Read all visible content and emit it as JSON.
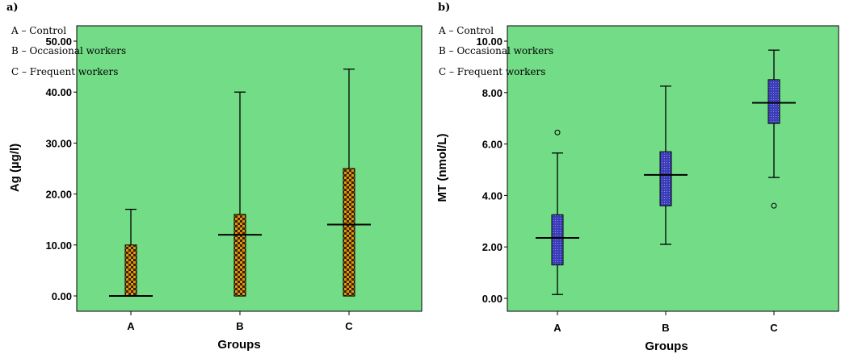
{
  "colors": {
    "plot_background": "#72dc86",
    "box_a_fill": "#e0920e",
    "box_a_pattern": "#3a2500",
    "box_b_fill": "#3b3cb8",
    "box_b_pattern": "#8c8cf0",
    "line": "#000000"
  },
  "chart_data": [
    {
      "type": "box",
      "panel_label": "a)",
      "xlabel": "Groups",
      "ylabel": "Ag (µg/l)",
      "categories": [
        "A",
        "B",
        "C"
      ],
      "ylim": [
        0,
        50
      ],
      "yticks": [
        0,
        10,
        20,
        30,
        40,
        50
      ],
      "ytick_labels": [
        "0.00",
        "10.00",
        "20.00",
        "30.00",
        "40.00",
        "50.00"
      ],
      "legend": [
        "A – Control",
        "B – Occasional workers",
        "C – Frequent workers"
      ],
      "legend_position": "top-left",
      "grid": false,
      "boxes": [
        {
          "category": "A",
          "min": 0,
          "q1": 0,
          "median": 0,
          "q3": 10,
          "max": 17,
          "outliers": []
        },
        {
          "category": "B",
          "min": 0,
          "q1": 0,
          "median": 12,
          "q3": 16,
          "max": 40,
          "outliers": []
        },
        {
          "category": "C",
          "min": 0,
          "q1": 0,
          "median": 14,
          "q3": 25,
          "max": 44.5,
          "outliers": []
        }
      ]
    },
    {
      "type": "box",
      "panel_label": "b)",
      "xlabel": "Groups",
      "ylabel": "MT (nmol/L)",
      "categories": [
        "A",
        "B",
        "C"
      ],
      "ylim": [
        0,
        10
      ],
      "yticks": [
        0,
        2,
        4,
        6,
        8,
        10
      ],
      "ytick_labels": [
        "0.00",
        "2.00",
        "4.00",
        "6.00",
        "8.00",
        "10.00"
      ],
      "legend": [
        "A – Control",
        "B – Occasional workers",
        "C – Frequent workers"
      ],
      "legend_position": "top-left",
      "grid": false,
      "boxes": [
        {
          "category": "A",
          "min": 0.15,
          "q1": 1.3,
          "median": 2.35,
          "q3": 3.25,
          "max": 5.65,
          "outliers": [
            6.45
          ]
        },
        {
          "category": "B",
          "min": 2.1,
          "q1": 3.6,
          "median": 4.8,
          "q3": 5.7,
          "max": 8.25,
          "outliers": []
        },
        {
          "category": "C",
          "min": 4.7,
          "q1": 6.8,
          "median": 7.6,
          "q3": 8.5,
          "max": 9.65,
          "outliers": [
            3.6
          ]
        }
      ]
    }
  ]
}
